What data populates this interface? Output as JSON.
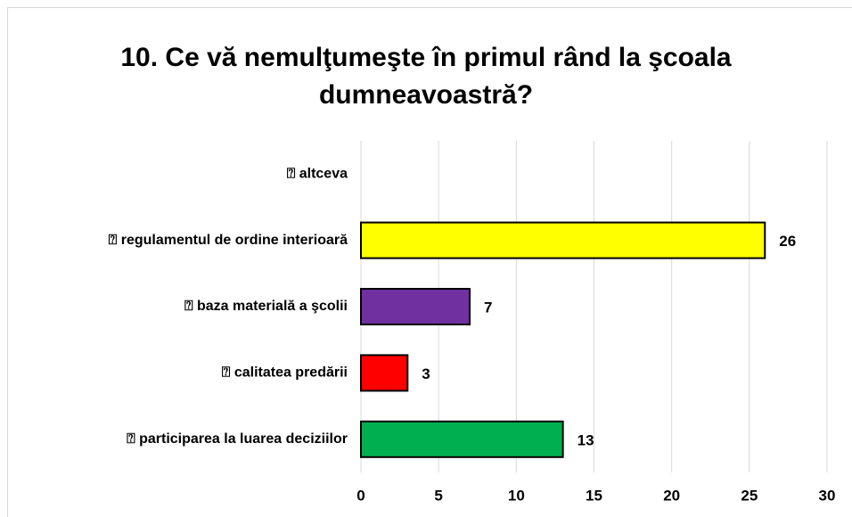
{
  "chart_data": {
    "type": "barh",
    "title": [
      "10. Ce vă nemulţumeşte în primul rând la şcoala",
      "dumneavoastră?"
    ],
    "categories": [
      "⍰ altceva",
      "⍰ regulamentul de ordine interioară",
      "⍰ baza materială a şcolii",
      "⍰ calitatea predării",
      "⍰ participarea la luarea deciziilor"
    ],
    "values": [
      null,
      26,
      7,
      3,
      13
    ],
    "colors": [
      "#ffffff",
      "#ffff00",
      "#7030a0",
      "#ff0000",
      "#00b050"
    ],
    "xlim": [
      0,
      30
    ],
    "xticks": [
      0,
      5,
      10,
      15,
      20,
      25,
      30
    ],
    "grid": true
  }
}
